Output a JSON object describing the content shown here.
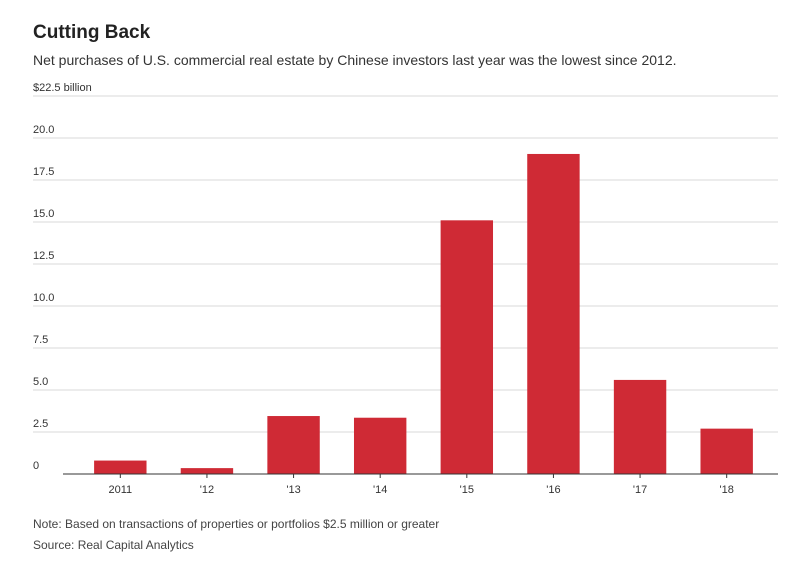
{
  "title": "Cutting Back",
  "subtitle": "Net purchases of U.S. commercial real estate by Chinese investors last year was the lowest since 2012.",
  "note": "Note: Based on transactions of properties or portfolios $2.5 million or greater",
  "source": "Source: Real Capital Analytics",
  "colors": {
    "bar": "#cf2a35",
    "grid": "#d9d9d9",
    "axis": "#333333"
  },
  "chart_data": {
    "type": "bar",
    "title": "Cutting Back",
    "ylabel": "$22.5 billion",
    "categories": [
      "2011",
      "'12",
      "'13",
      "'14",
      "'15",
      "'16",
      "'17",
      "'18"
    ],
    "values": [
      0.8,
      0.35,
      3.45,
      3.35,
      15.1,
      19.05,
      5.6,
      2.7
    ],
    "ylim": [
      0,
      22.5
    ],
    "yticks": [
      0,
      2.5,
      5.0,
      7.5,
      10.0,
      12.5,
      15.0,
      17.5,
      20.0
    ],
    "ytick_labels": [
      "0",
      "2.5",
      "5.0",
      "7.5",
      "10.0",
      "12.5",
      "15.0",
      "17.5",
      "20.0"
    ],
    "top_tick_label": "$22.5 billion",
    "grid": true
  }
}
